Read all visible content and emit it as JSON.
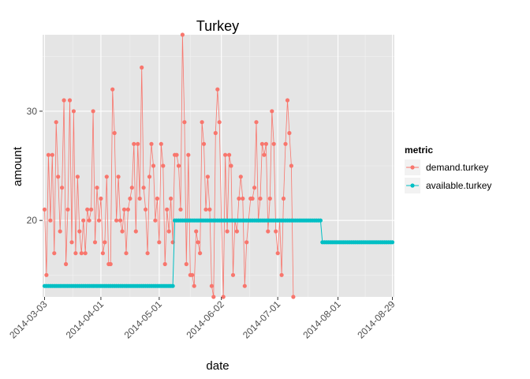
{
  "chart_data": {
    "type": "line",
    "title": "Turkey",
    "xlabel": "date",
    "ylabel": "amount",
    "x_range": [
      "2014-03-02",
      "2014-08-30"
    ],
    "ylim": [
      13,
      37
    ],
    "x_ticks": [
      "2014-03-03",
      "2014-04-01",
      "2014-05-01",
      "2014-06-02",
      "2014-07-01",
      "2014-08-01",
      "2014-08-29"
    ],
    "y_ticks": [
      20,
      30
    ],
    "grid": true,
    "legend": {
      "title": "metric",
      "position": "right",
      "entries": [
        "demand.turkey",
        "available.turkey"
      ]
    },
    "colors": {
      "panel": "#e5e5e5",
      "grid_major": "#ffffff",
      "grid_minor": "#f2f2f2",
      "demand": "#f8766d",
      "available": "#00bfc4"
    },
    "series": [
      {
        "name": "demand.turkey",
        "points": [
          [
            "2014-03-03",
            21
          ],
          [
            "2014-03-04",
            15
          ],
          [
            "2014-03-05",
            26
          ],
          [
            "2014-03-06",
            20
          ],
          [
            "2014-03-07",
            26
          ],
          [
            "2014-03-08",
            17
          ],
          [
            "2014-03-09",
            29
          ],
          [
            "2014-03-10",
            24
          ],
          [
            "2014-03-11",
            19
          ],
          [
            "2014-03-12",
            23
          ],
          [
            "2014-03-13",
            31
          ],
          [
            "2014-03-14",
            16
          ],
          [
            "2014-03-15",
            21
          ],
          [
            "2014-03-16",
            31
          ],
          [
            "2014-03-17",
            18
          ],
          [
            "2014-03-18",
            30
          ],
          [
            "2014-03-19",
            17
          ],
          [
            "2014-03-20",
            24
          ],
          [
            "2014-03-21",
            19
          ],
          [
            "2014-03-22",
            17
          ],
          [
            "2014-03-23",
            20
          ],
          [
            "2014-03-24",
            17
          ],
          [
            "2014-03-25",
            21
          ],
          [
            "2014-03-26",
            20
          ],
          [
            "2014-03-27",
            21
          ],
          [
            "2014-03-28",
            30
          ],
          [
            "2014-03-29",
            18
          ],
          [
            "2014-03-30",
            23
          ],
          [
            "2014-03-31",
            20
          ],
          [
            "2014-04-01",
            22
          ],
          [
            "2014-04-02",
            17
          ],
          [
            "2014-04-03",
            18
          ],
          [
            "2014-04-04",
            24
          ],
          [
            "2014-04-05",
            16
          ],
          [
            "2014-04-06",
            16
          ],
          [
            "2014-04-07",
            32
          ],
          [
            "2014-04-08",
            28
          ],
          [
            "2014-04-09",
            20
          ],
          [
            "2014-04-10",
            24
          ],
          [
            "2014-04-11",
            20
          ],
          [
            "2014-04-12",
            19
          ],
          [
            "2014-04-13",
            21
          ],
          [
            "2014-04-14",
            17
          ],
          [
            "2014-04-15",
            21
          ],
          [
            "2014-04-16",
            22
          ],
          [
            "2014-04-17",
            23
          ],
          [
            "2014-04-18",
            27
          ],
          [
            "2014-04-19",
            19
          ],
          [
            "2014-04-20",
            27
          ],
          [
            "2014-04-21",
            22
          ],
          [
            "2014-04-22",
            34
          ],
          [
            "2014-04-23",
            23
          ],
          [
            "2014-04-24",
            21
          ],
          [
            "2014-04-25",
            17
          ],
          [
            "2014-04-26",
            24
          ],
          [
            "2014-04-27",
            27
          ],
          [
            "2014-04-28",
            25
          ],
          [
            "2014-04-29",
            20
          ],
          [
            "2014-04-30",
            22
          ],
          [
            "2014-05-01",
            18
          ],
          [
            "2014-05-02",
            27
          ],
          [
            "2014-05-03",
            25
          ],
          [
            "2014-05-04",
            16
          ],
          [
            "2014-05-05",
            21
          ],
          [
            "2014-05-06",
            19
          ],
          [
            "2014-05-07",
            22
          ],
          [
            "2014-05-08",
            18
          ],
          [
            "2014-05-09",
            26
          ],
          [
            "2014-05-10",
            26
          ],
          [
            "2014-05-11",
            25
          ],
          [
            "2014-05-12",
            21
          ],
          [
            "2014-05-13",
            37
          ],
          [
            "2014-05-14",
            29
          ],
          [
            "2014-05-15",
            16
          ],
          [
            "2014-05-16",
            26
          ],
          [
            "2014-05-17",
            15
          ],
          [
            "2014-05-18",
            15
          ],
          [
            "2014-05-19",
            14
          ],
          [
            "2014-05-20",
            19
          ],
          [
            "2014-05-21",
            18
          ],
          [
            "2014-05-22",
            17
          ],
          [
            "2014-05-23",
            29
          ],
          [
            "2014-05-24",
            27
          ],
          [
            "2014-05-25",
            21
          ],
          [
            "2014-05-26",
            24
          ],
          [
            "2014-05-27",
            21
          ],
          [
            "2014-05-28",
            14
          ],
          [
            "2014-05-29",
            13
          ],
          [
            "2014-05-30",
            28
          ],
          [
            "2014-05-31",
            32
          ],
          [
            "2014-06-01",
            29
          ],
          [
            "2014-06-02",
            20
          ],
          [
            "2014-06-03",
            13
          ],
          [
            "2014-06-04",
            26
          ],
          [
            "2014-06-05",
            19
          ],
          [
            "2014-06-06",
            26
          ],
          [
            "2014-06-07",
            25
          ],
          [
            "2014-06-08",
            15
          ],
          [
            "2014-06-09",
            20
          ],
          [
            "2014-06-10",
            19
          ],
          [
            "2014-06-11",
            22
          ],
          [
            "2014-06-12",
            24
          ],
          [
            "2014-06-13",
            22
          ],
          [
            "2014-06-14",
            14
          ],
          [
            "2014-06-15",
            18
          ],
          [
            "2014-06-16",
            20
          ],
          [
            "2014-06-17",
            22
          ],
          [
            "2014-06-18",
            22
          ],
          [
            "2014-06-19",
            23
          ],
          [
            "2014-06-20",
            29
          ],
          [
            "2014-06-21",
            20
          ],
          [
            "2014-06-22",
            22
          ],
          [
            "2014-06-23",
            27
          ],
          [
            "2014-06-24",
            26
          ],
          [
            "2014-06-25",
            27
          ],
          [
            "2014-06-26",
            19
          ],
          [
            "2014-06-27",
            22
          ],
          [
            "2014-06-28",
            30
          ],
          [
            "2014-06-29",
            27
          ],
          [
            "2014-06-30",
            19
          ],
          [
            "2014-07-01",
            17
          ],
          [
            "2014-07-02",
            20
          ],
          [
            "2014-07-03",
            15
          ],
          [
            "2014-07-04",
            22
          ],
          [
            "2014-07-05",
            27
          ],
          [
            "2014-07-06",
            31
          ],
          [
            "2014-07-07",
            28
          ],
          [
            "2014-07-08",
            25
          ],
          [
            "2014-07-09",
            13
          ]
        ]
      },
      {
        "name": "available.turkey",
        "segments": [
          {
            "from": "2014-03-03",
            "to": "2014-05-08",
            "value": 14
          },
          {
            "from": "2014-05-09",
            "to": "2014-07-23",
            "value": 20
          },
          {
            "from": "2014-07-24",
            "to": "2014-08-29",
            "value": 18
          }
        ]
      }
    ]
  }
}
